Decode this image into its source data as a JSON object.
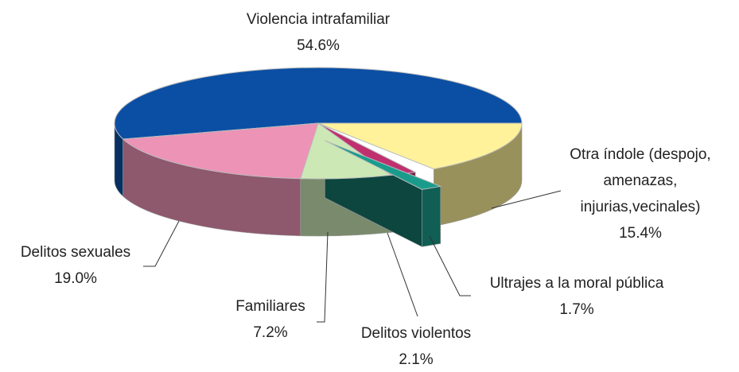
{
  "chart_data": {
    "type": "pie",
    "categories": [
      "Violencia intrafamiliar",
      "Otra índole (despojo, amenazas, injurias,vecinales)",
      "Ultrajes a la moral pública",
      "Delitos violentos",
      "Familiares",
      "Delitos sexuales"
    ],
    "values": [
      54.6,
      15.4,
      1.7,
      2.1,
      7.2,
      19.0
    ],
    "value_labels": [
      "54.6%",
      "15.4%",
      "1.7%",
      "2.1%",
      "7.2%",
      "19.0%"
    ],
    "colors": [
      "#0b4fa4",
      "#fff29a",
      "#1a9c8c",
      "#c0306f",
      "#cce8b5",
      "#ec93b6"
    ]
  }
}
